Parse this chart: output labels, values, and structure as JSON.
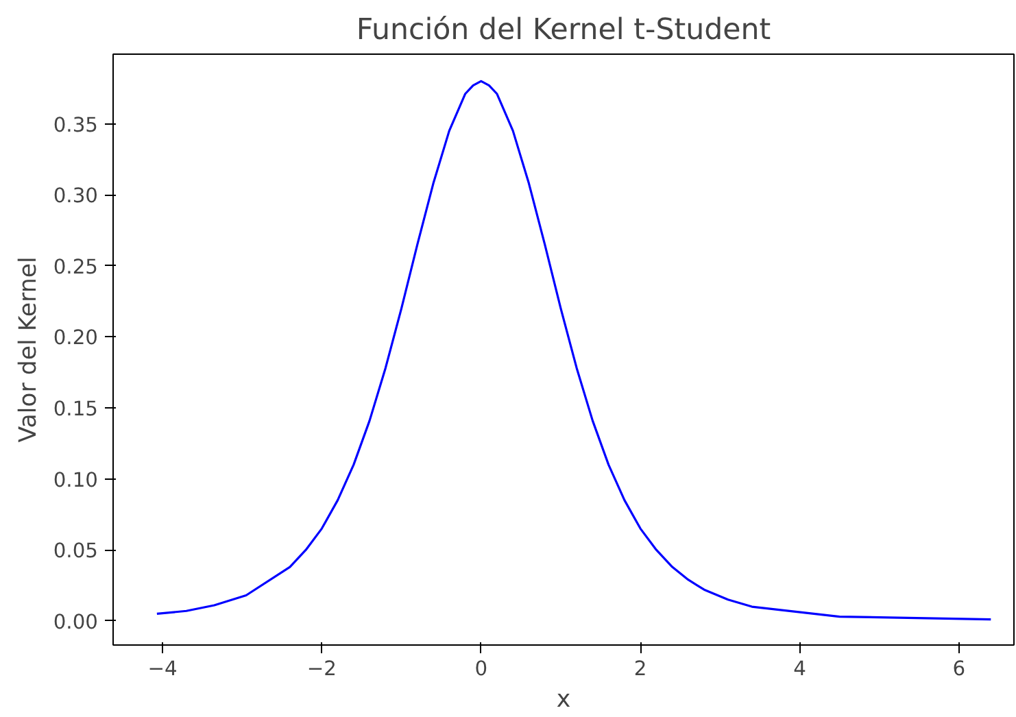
{
  "chart_data": {
    "type": "line",
    "title": "Función del Kernel t-Student",
    "xlabel": "x",
    "ylabel": "Valor del Kernel",
    "series": [
      {
        "color": "#0000ff",
        "x": [
          -4.07,
          -3.7,
          -3.35,
          -2.95,
          -2.4,
          -2.2,
          -2.0,
          -1.8,
          -1.6,
          -1.4,
          -1.2,
          -1.0,
          -0.8,
          -0.6,
          -0.4,
          -0.2,
          -0.1,
          0.0,
          0.1,
          0.2,
          0.4,
          0.6,
          0.8,
          1.0,
          1.2,
          1.4,
          1.6,
          1.8,
          2.0,
          2.2,
          2.4,
          2.6,
          2.8,
          3.1,
          3.4,
          4.5,
          6.4
        ],
        "values": [
          0.005,
          0.007,
          0.011,
          0.018,
          0.038,
          0.05,
          0.065,
          0.085,
          0.11,
          0.141,
          0.178,
          0.22,
          0.265,
          0.308,
          0.345,
          0.371,
          0.377,
          0.38,
          0.377,
          0.371,
          0.345,
          0.308,
          0.265,
          0.22,
          0.178,
          0.141,
          0.11,
          0.085,
          0.065,
          0.05,
          0.038,
          0.029,
          0.022,
          0.015,
          0.01,
          0.003,
          0.001
        ]
      }
    ],
    "xlim": [
      -4.62,
      6.69
    ],
    "ylim": [
      -0.017,
      0.399
    ],
    "xticks": [
      {
        "value": -4,
        "label": "−4"
      },
      {
        "value": -2,
        "label": "−2"
      },
      0,
      2,
      4,
      6
    ],
    "yticks": [
      {
        "value": 0,
        "label": "0.00"
      },
      {
        "value": 0.05,
        "label": "0.05"
      },
      {
        "value": 0.1,
        "label": "0.10"
      },
      {
        "value": 0.15,
        "label": "0.15"
      },
      {
        "value": 0.2,
        "label": "0.20"
      },
      {
        "value": 0.25,
        "label": "0.25"
      },
      {
        "value": 0.3,
        "label": "0.30"
      },
      {
        "value": 0.35,
        "label": "0.35"
      }
    ],
    "grid": false,
    "marker": "none",
    "line_style": "solid"
  }
}
